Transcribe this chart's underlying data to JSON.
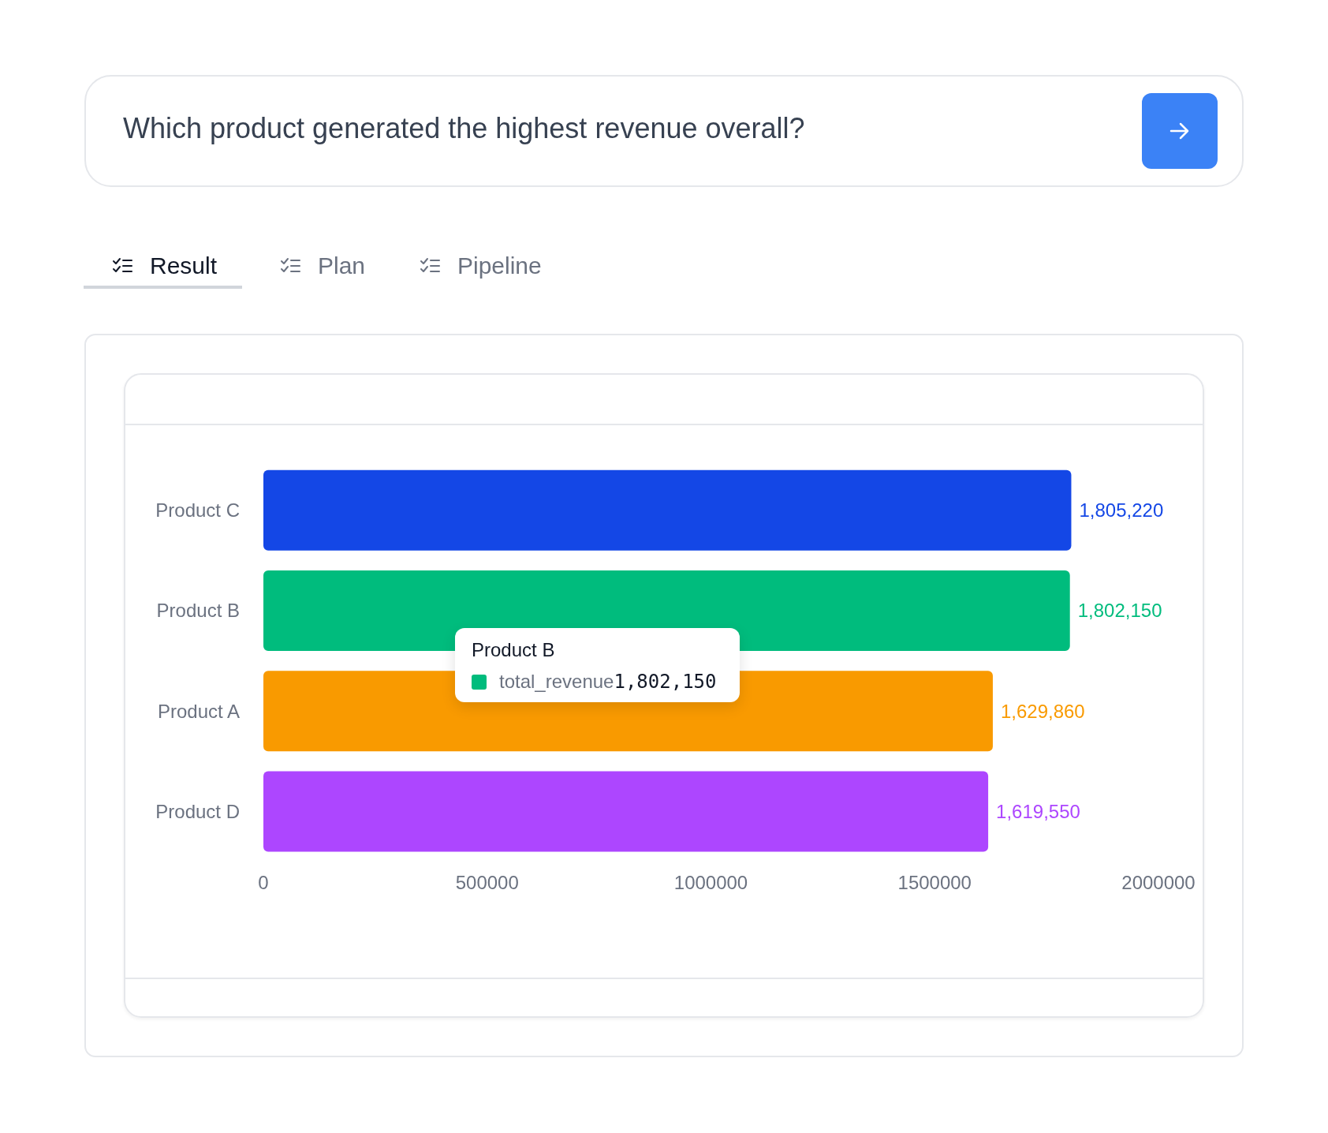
{
  "chart_data": {
    "type": "bar",
    "orientation": "horizontal",
    "title": "Which product generated the highest revenue overall?",
    "categories": [
      "Product C",
      "Product B",
      "Product A",
      "Product D"
    ],
    "values": [
      1805220,
      1802150,
      1629860,
      1619550
    ],
    "colors": [
      "#1447e6",
      "#00bc7d",
      "#f99a00",
      "#ad46ff"
    ],
    "value_labels": [
      "1,805,220",
      "1,802,150",
      "1,629,860",
      "1,619,550"
    ],
    "xlim": [
      0,
      2000000
    ],
    "xticks": [
      0,
      500000,
      1000000,
      1500000,
      2000000
    ],
    "grid": false,
    "annotations": [
      "Result",
      "Plan",
      "Pipeline",
      "Product B",
      "total_revenue",
      "1,802,150"
    ]
  }
}
